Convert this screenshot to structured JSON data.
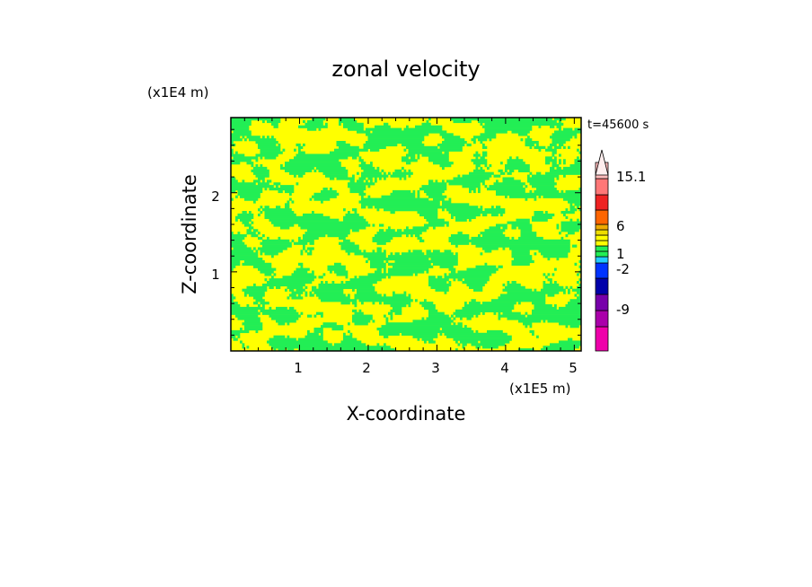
{
  "chart_data": {
    "type": "heatmap",
    "title": "zonal velocity",
    "xlabel": "X-coordinate",
    "ylabel": "Z-coordinate",
    "x_scale_label": "(x1E5 m)",
    "y_scale_label": "(x1E4 m)",
    "time_label": "t=45600 s",
    "xlim": [
      0,
      5.1
    ],
    "ylim": [
      0,
      2.95
    ],
    "x_ticks": [
      "1",
      "2",
      "3",
      "4",
      "5"
    ],
    "x_tick_values": [
      1,
      2,
      3,
      4,
      5
    ],
    "y_ticks": [
      "1",
      "2"
    ],
    "y_tick_values": [
      1,
      2
    ],
    "field_colors": {
      "positive_small": "#ffff00",
      "negative_small": "#22ee55"
    },
    "colorbar": {
      "levels": [
        -15,
        -12,
        -9,
        -6,
        -4,
        -2,
        -1,
        -0.5,
        0,
        0.5,
        1,
        1.5,
        3,
        6,
        9,
        12,
        15.1
      ],
      "labels": [
        "15.1",
        "6",
        "1",
        "-2",
        "-9"
      ],
      "label_values": [
        15.1,
        6,
        1,
        -2,
        -9
      ],
      "colors": [
        "#ee00aa",
        "#aa00aa",
        "#7700aa",
        "#0000aa",
        "#0033ff",
        "#22ccff",
        "#22ee55",
        "#22ee55",
        "#ffff00",
        "#ffff00",
        "#eedd00",
        "#eeaa00",
        "#ff6600",
        "#ee2222",
        "#ff7777",
        "#ffbbbb"
      ],
      "extend_top": true
    }
  }
}
